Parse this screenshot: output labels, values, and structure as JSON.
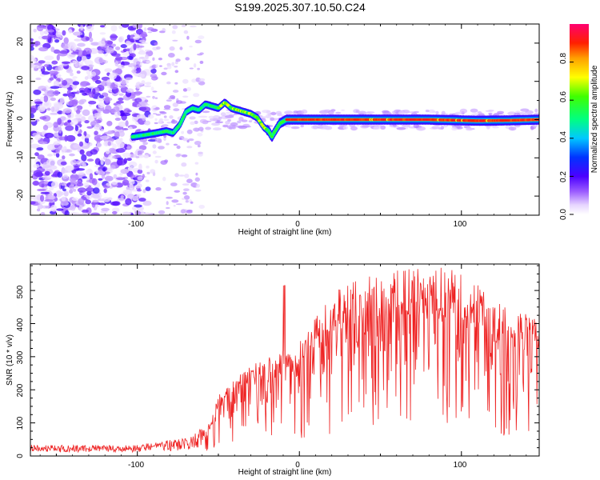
{
  "title": "S199.2025.307.10.50.C24",
  "colors": {
    "snr_line": "#ee2222",
    "frame": "#000000",
    "background": "#ffffff"
  },
  "chart_data": [
    {
      "type": "heatmap",
      "title": "S199.2025.307.10.50.C24",
      "xlabel": "Height of straight line (km)",
      "ylabel": "Frequency (Hz)",
      "xlim": [
        -166,
        148
      ],
      "ylim": [
        -25,
        25
      ],
      "xticks": [
        "-100",
        "0",
        "100"
      ],
      "yticks": [
        "20",
        "10",
        "0",
        "-10",
        "-20"
      ],
      "colorbar": {
        "label": "Normalized spectral amplitude",
        "range": [
          0,
          1
        ],
        "ticks": [
          "0.0",
          "0.2",
          "0.4",
          "0.6",
          "0.8"
        ]
      },
      "ridge": {
        "x": [
          -103,
          -95,
          -88,
          -82,
          -78,
          -74,
          -70,
          -66,
          -62,
          -58,
          -54,
          -50,
          -46,
          -42,
          -38,
          -34,
          -30,
          -26,
          -22,
          -19,
          -17,
          -15,
          -12,
          -8,
          0,
          10,
          40,
          80,
          110,
          130,
          148
        ],
        "freq": [
          -4.5,
          -4,
          -3.5,
          -3,
          -3.5,
          -1.5,
          2,
          3,
          2.5,
          4,
          3.5,
          3,
          4.5,
          3,
          2.5,
          2,
          1.5,
          0.5,
          -2,
          -3,
          -4.5,
          -3,
          -1,
          0,
          0,
          0,
          0,
          0,
          -0.3,
          -0.2,
          0
        ]
      }
    },
    {
      "type": "line",
      "xlabel": "Height of straight line (km)",
      "ylabel": "SNR (10 * v/v)",
      "xlim": [
        -166,
        148
      ],
      "ylim": [
        0,
        580
      ],
      "xticks": [
        "-100",
        "0",
        "100"
      ],
      "yticks": [
        "0",
        "100",
        "200",
        "300",
        "400",
        "500"
      ],
      "envelope": {
        "x": [
          -166,
          -100,
          -85,
          -75,
          -65,
          -55,
          -50,
          -40,
          -30,
          -20,
          -10,
          0,
          10,
          20,
          30,
          40,
          50,
          60,
          70,
          80,
          90,
          100,
          110,
          120,
          130,
          140,
          148
        ],
        "snr": [
          22,
          22,
          35,
          40,
          50,
          100,
          170,
          210,
          250,
          270,
          290,
          315,
          380,
          440,
          480,
          500,
          505,
          510,
          515,
          520,
          518,
          505,
          470,
          430,
          400,
          390,
          380
        ]
      }
    }
  ]
}
